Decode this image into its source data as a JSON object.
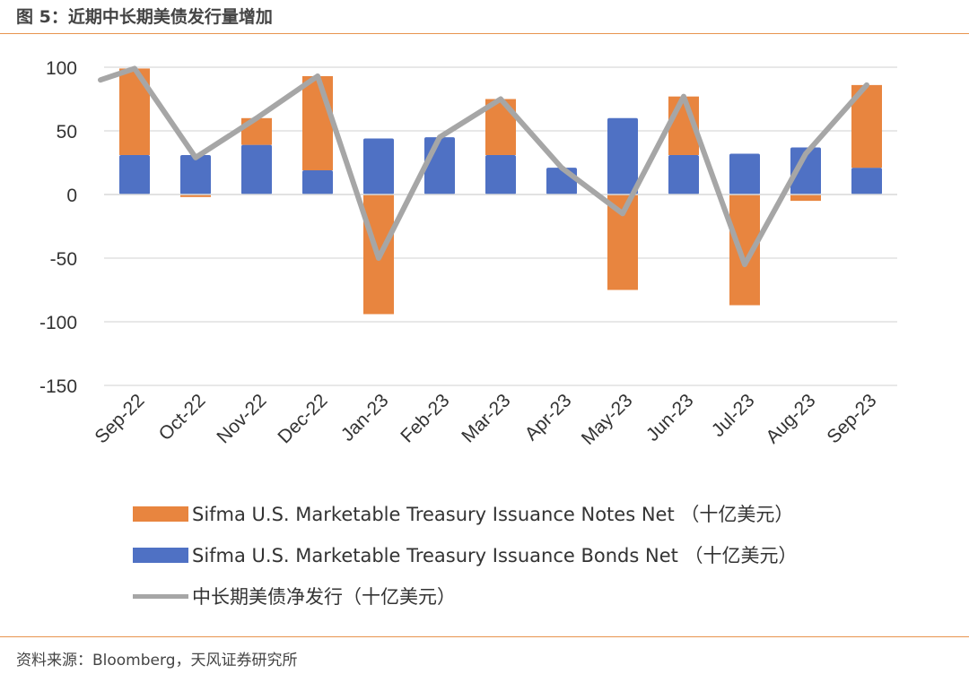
{
  "header": {
    "title": "图 5：近期中长期美债发行量增加"
  },
  "footer": {
    "source": "资料来源：Bloomberg，天风证券研究所"
  },
  "colors": {
    "notes": "#e8853f",
    "bonds": "#4f71c4",
    "line": "#a6a6a6",
    "grid": "#d9d9d9",
    "rule": "#e8944f"
  },
  "chart_data": {
    "type": "bar",
    "categories": [
      "Sep-22",
      "Oct-22",
      "Nov-22",
      "Dec-22",
      "Jan-23",
      "Feb-23",
      "Mar-23",
      "Apr-23",
      "May-23",
      "Jun-23",
      "Jul-23",
      "Aug-23",
      "Sep-23"
    ],
    "ylim": [
      -150,
      100
    ],
    "yticks": [
      100,
      50,
      0,
      -50,
      -100,
      -150
    ],
    "grid": true,
    "legend_position": "bottom",
    "series": [
      {
        "name": "Sifma U.S. Marketable Treasury Issuance Notes Net （十亿美元）",
        "kind": "bar-stacked",
        "values": [
          68,
          -2,
          21,
          74,
          -94,
          0,
          44,
          0,
          -75,
          46,
          -87,
          -5,
          65
        ]
      },
      {
        "name": "Sifma U.S. Marketable Treasury Issuance Bonds Net （十亿美元）",
        "kind": "bar-stacked",
        "values": [
          31,
          31,
          39,
          19,
          44,
          45,
          31,
          21,
          60,
          31,
          32,
          37,
          21
        ]
      },
      {
        "name": "中长期美债净发行（十亿美元）",
        "kind": "line",
        "values": [
          99,
          29,
          60,
          93,
          -50,
          45,
          75,
          21,
          -15,
          77,
          -55,
          32,
          86
        ]
      }
    ]
  }
}
